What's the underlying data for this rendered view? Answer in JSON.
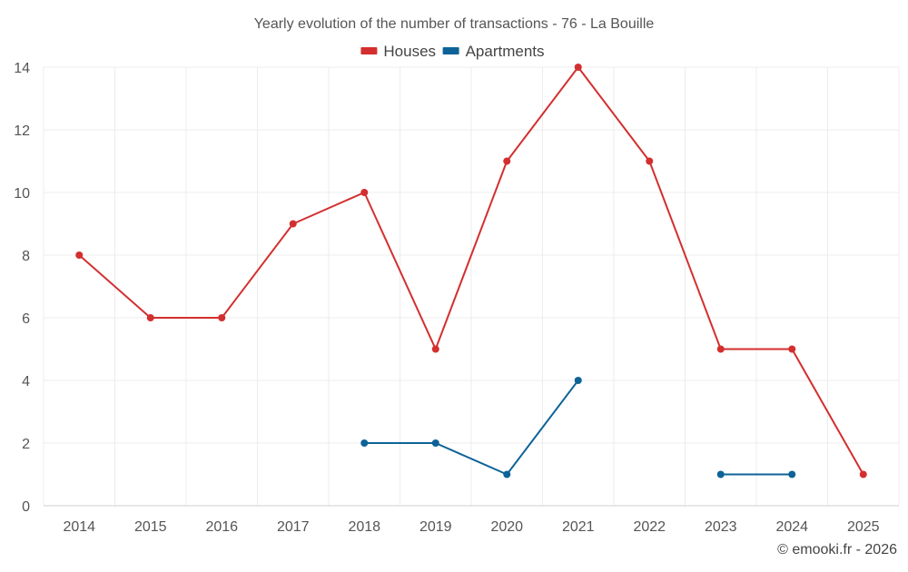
{
  "chart_data": {
    "type": "line",
    "title": "Yearly evolution of the number of transactions - 76 - La Bouille",
    "xlabel": "",
    "ylabel": "",
    "categories": [
      "2014",
      "2015",
      "2016",
      "2017",
      "2018",
      "2019",
      "2020",
      "2021",
      "2022",
      "2023",
      "2024",
      "2025"
    ],
    "ylim": [
      0,
      14
    ],
    "yticks": [
      0,
      2,
      4,
      6,
      8,
      10,
      12,
      14
    ],
    "grid": true,
    "legend_position": "top-center",
    "series": [
      {
        "name": "Houses",
        "color": "#d32f2f",
        "values": [
          8,
          6,
          6,
          9,
          10,
          5,
          11,
          14,
          11,
          5,
          5,
          1
        ]
      },
      {
        "name": "Apartments",
        "color": "#0d6397",
        "values": [
          null,
          null,
          null,
          null,
          2,
          2,
          1,
          4,
          null,
          1,
          1,
          null
        ]
      }
    ]
  },
  "credit": "© emooki.fr - 2026"
}
